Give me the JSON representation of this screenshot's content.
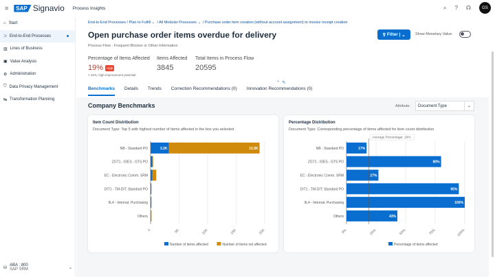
{
  "header": {
    "brand_logo": "SAP",
    "brand": "Signavio",
    "product": "Process Insights",
    "avatar": "GS"
  },
  "sidebar": {
    "items": [
      {
        "label": "Start",
        "icon": "home-icon"
      },
      {
        "label": "End-to-End Processes",
        "icon": "flow-icon",
        "active": true
      },
      {
        "label": "Lines of Business",
        "icon": "building-icon"
      },
      {
        "label": "Value Analysis",
        "icon": "chart-icon"
      },
      {
        "label": "Administration",
        "icon": "gear-icon"
      },
      {
        "label": "Data Privacy Management",
        "icon": "shield-icon"
      },
      {
        "label": "Transformation Planning",
        "icon": "transform-icon"
      }
    ],
    "footer": {
      "system": "ABA : 800",
      "sub": "SAP SRM"
    }
  },
  "breadcrumb": [
    "End-to-End Processes / Plan to Fulfill",
    "/ All Modular Processes",
    "/ Purchase order item creation (without account assignment) to invoice receipt creation"
  ],
  "title": "Open purchase order items overdue for delivery",
  "subtitle": "Process Flow · Frequent Blocker or Other Information",
  "filter_label": "Filter",
  "show_monetary": "Show Monetary Value",
  "kpis": {
    "pct_label": "Percentage of Items Affected",
    "pct": "19%",
    "badge": "High",
    "pct_note": "> 10%, high improvement potential",
    "affected_label": "Items Affected",
    "affected": "3845",
    "total_label": "Total Items in Process Flow",
    "total": "20595"
  },
  "tabs": [
    "Benchmarks",
    "Details",
    "Trends",
    "Correction Recommendations (0)",
    "Innovation Recommendations (0)"
  ],
  "section_title": "Company Benchmarks",
  "attribute_label": "Attribute:",
  "attribute_value": "Document Type",
  "chart_data": [
    {
      "type": "bar",
      "stacked": true,
      "orientation": "horizontal",
      "title": "Item Count Distribution",
      "subtitle": "Document Type: Top 5 with highest number of items affected in the box you selected",
      "categories": [
        "NB - Standard PO",
        "ZGT1 - IDES - GTS PO",
        "EC - Electronic Comm. SRM",
        "DIT1 - TM-DIT: Standard PO",
        "IIL4 - Internat. Purchasing",
        "Others"
      ],
      "series": [
        {
          "name": "Number of items affected",
          "color": "#0a6ed1",
          "values": [
            3200,
            300,
            300,
            50,
            30,
            20
          ],
          "labels": [
            "3.2K",
            "",
            "",
            "",
            "",
            ""
          ]
        },
        {
          "name": "Number of items not affected",
          "color": "#d08a0c",
          "values": [
            15900,
            100,
            700,
            0,
            0,
            30
          ],
          "labels": [
            "15.9K",
            "",
            "",
            "",
            "",
            ""
          ]
        }
      ],
      "xlim": [
        0,
        20000
      ],
      "ticks": [
        "0",
        "5K",
        "10K",
        "15K",
        "20K"
      ],
      "legend": "bottom",
      "grid": true
    },
    {
      "type": "bar",
      "orientation": "horizontal",
      "title": "Percentage Distribution",
      "subtitle": "Document Type: Corresponding percentage of items affected for item count distribution",
      "categories": [
        "NB - Standard PO",
        "ZGT1 - IDES - GTS PO",
        "EC - Electronic Comm. SRM",
        "DIT1 - TM-DIT: Standard PO",
        "IIL4 - Internat. Purchasing",
        "Others"
      ],
      "series": [
        {
          "name": "Percentage of items affected",
          "color": "#0a6ed1",
          "values": [
            17,
            80,
            27,
            95,
            100,
            43
          ],
          "labels": [
            "17%",
            "80%",
            "27%",
            "95%",
            "100%",
            "43%"
          ]
        }
      ],
      "xlim": [
        0,
        100
      ],
      "ticks": [
        "0%",
        "25%",
        "50%",
        "75%",
        "100%"
      ],
      "reference_line": {
        "value": 19,
        "label": "Average Percentage: 19%"
      },
      "legend": "bottom",
      "grid": true
    }
  ]
}
